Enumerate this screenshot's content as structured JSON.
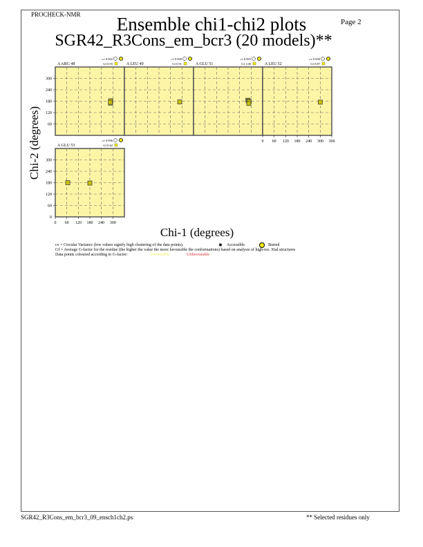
{
  "header": {
    "program": "PROCHECK-NMR",
    "title": "Ensemble chi1-chi2 plots",
    "subtitle": "SGR42_R3Cons_em_bcr3 (20 models)**",
    "page": "Page  2"
  },
  "chart_data": {
    "type": "scatter",
    "xlabel": "Chi-1 (degrees)",
    "ylabel": "Chi-2 (degrees)",
    "xlim": [
      0,
      360
    ],
    "ylim": [
      0,
      360
    ],
    "xticks": [
      0,
      60,
      120,
      180,
      240,
      300,
      360
    ],
    "yticks": [
      60,
      120,
      180,
      240,
      300
    ],
    "grid": true,
    "background_color": "#fdf5a6",
    "point_color": "#c8c000",
    "panels": [
      {
        "residue": "A ARG 48",
        "cv": "cv 0.002",
        "gf": "Gf 0.93",
        "points": [
          [
            288,
            170
          ],
          [
            288,
            178
          ],
          [
            289,
            182
          ],
          [
            287,
            174
          ]
        ]
      },
      {
        "residue": "A LEU 49",
        "cv": "cv 0.000",
        "gf": "Gf 0.91",
        "points": [
          [
            288,
            176
          ]
        ]
      },
      {
        "residue": "A GLU 51",
        "cv": "cv 0.003",
        "gf": "Gf 1.06",
        "points": [
          [
            283,
            185
          ],
          [
            287,
            180
          ],
          [
            290,
            178
          ],
          [
            288,
            168
          ]
        ]
      },
      {
        "residue": "A LEU 52",
        "cv": "cv 0.000",
        "gf": "Gf 0.87",
        "points": [
          [
            300,
            175
          ]
        ]
      },
      {
        "residue": "A GLU 53",
        "cv": "cv 0.096",
        "gf": "Gf 0.62",
        "points": [
          [
            65,
            180
          ],
          [
            180,
            178
          ]
        ]
      }
    ]
  },
  "legend": {
    "cv_line": "cv = Circular Variance (low values signify high clustering of the data points).",
    "accessible": "Accessible",
    "buried": "Buried",
    "gf_line": "Gf = Average G-factor for the residue (the higher the value the more favourable the conformations) based on analysis of high-res. Xtal structures",
    "colour_line": "Data points coloured according to G-factor:",
    "favourable": "Favourable",
    "unfavourable": "Unfavourable",
    "favourable_color": "#f0f060",
    "unfavourable_color": "#e03030"
  },
  "footer": {
    "filename": "SGR42_R3Cons_em_bcr3_09_ensch1ch2.ps",
    "note": "** Selected residues only"
  }
}
